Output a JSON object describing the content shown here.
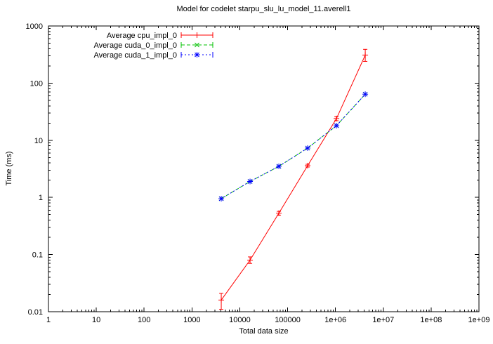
{
  "window": {
    "background": "#ffffff"
  },
  "chart_data": {
    "type": "line",
    "title": "Model for codelet starpu_slu_lu_model_11.averell1",
    "xlabel": "Total data size",
    "ylabel": "Time (ms)",
    "xscale": "log",
    "yscale": "log",
    "xlim": [
      1,
      1000000000
    ],
    "ylim": [
      0.01,
      1000
    ],
    "grid": false,
    "legend_position": "top-left-inside",
    "x_ticks": [
      {
        "v": 1,
        "label": "1"
      },
      {
        "v": 10,
        "label": "10"
      },
      {
        "v": 100,
        "label": "100"
      },
      {
        "v": 1000,
        "label": "1000"
      },
      {
        "v": 10000,
        "label": "10000"
      },
      {
        "v": 100000,
        "label": "100000"
      },
      {
        "v": 1000000,
        "label": "1e+06"
      },
      {
        "v": 10000000,
        "label": "1e+07"
      },
      {
        "v": 100000000,
        "label": "1e+08"
      },
      {
        "v": 1000000000,
        "label": "1e+09"
      }
    ],
    "y_ticks": [
      {
        "v": 0.01,
        "label": "0.01"
      },
      {
        "v": 0.1,
        "label": "0.1"
      },
      {
        "v": 1,
        "label": "1"
      },
      {
        "v": 10,
        "label": "10"
      },
      {
        "v": 100,
        "label": "100"
      },
      {
        "v": 1000,
        "label": "1000"
      }
    ],
    "series": [
      {
        "name": "Average cpu_impl_0",
        "color": "#ff0000",
        "linestyle": "solid",
        "marker": "plus",
        "x": [
          4096,
          16384,
          65536,
          262144,
          1048576,
          4194304
        ],
        "y": [
          0.016,
          0.08,
          0.53,
          3.6,
          24,
          310
        ],
        "y_err_low": [
          0.011,
          0.07,
          0.49,
          3.4,
          22,
          240
        ],
        "y_err_high": [
          0.021,
          0.091,
          0.57,
          3.8,
          26,
          390
        ]
      },
      {
        "name": "Average cuda_0_impl_0",
        "color": "#00c000",
        "linestyle": "dashed",
        "marker": "cross",
        "x": [
          4096,
          16384,
          65536,
          262144,
          1048576,
          4194304
        ],
        "y": [
          0.95,
          1.9,
          3.5,
          7.3,
          18,
          64
        ]
      },
      {
        "name": "Average cuda_1_impl_0",
        "color": "#0000ff",
        "linestyle": "dotted",
        "marker": "star",
        "x": [
          4096,
          16384,
          65536,
          262144,
          1048576,
          4194304
        ],
        "y": [
          0.95,
          1.9,
          3.5,
          7.3,
          18,
          64
        ]
      }
    ]
  }
}
